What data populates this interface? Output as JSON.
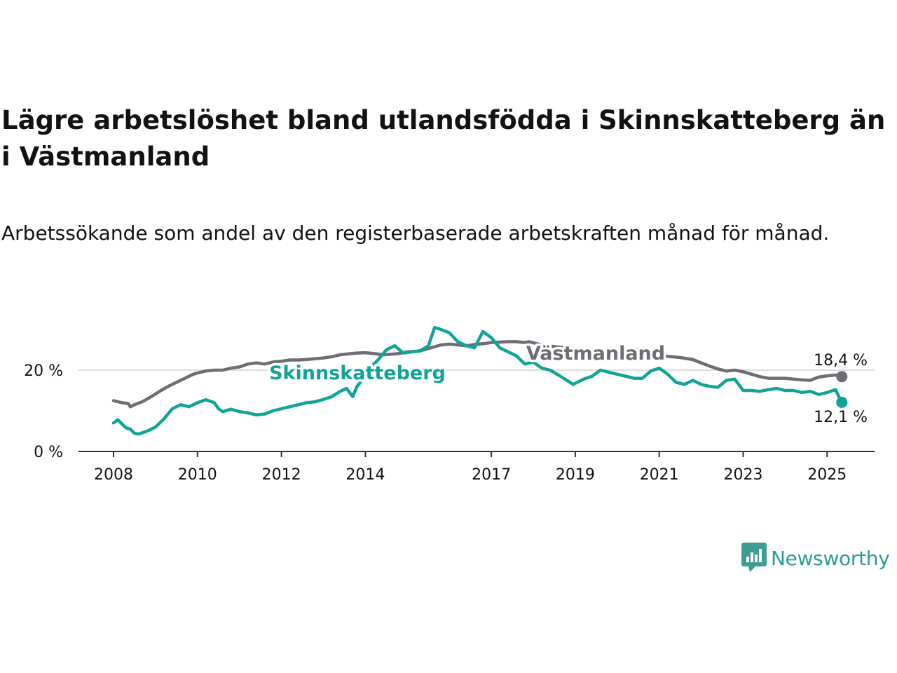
{
  "title": "Lägre arbetslöshet bland utlandsfödda i Skinnskatteberg än i Västmanland",
  "subtitle": "Arbetssökande som andel av den registerbaserade arbetskraften månad för månad.",
  "brand": {
    "name": "Newsworthy",
    "color": "#2a9d8f"
  },
  "chart_data": {
    "type": "line",
    "x_unit": "year",
    "xlim": [
      2007.6,
      2026.2
    ],
    "ylim": [
      0,
      32
    ],
    "y_ticks": [
      0,
      20
    ],
    "y_tick_labels": [
      "0 %",
      "20 %"
    ],
    "x_ticks": [
      2008,
      2010,
      2012,
      2014,
      2017,
      2019,
      2021,
      2023,
      2025
    ],
    "x_tick_labels": [
      "2008",
      "2010",
      "2012",
      "2014",
      "2017",
      "2019",
      "2021",
      "2023",
      "2025"
    ],
    "grid": "horizontal",
    "series": [
      {
        "name": "Västmanland",
        "color": "#6e6c74",
        "end_label": "18,4 %",
        "points": [
          [
            2008.0,
            12.5
          ],
          [
            2008.2,
            12.0
          ],
          [
            2008.35,
            11.8
          ],
          [
            2008.4,
            11.0
          ],
          [
            2008.5,
            11.5
          ],
          [
            2008.7,
            12.3
          ],
          [
            2008.9,
            13.5
          ],
          [
            2009.1,
            14.8
          ],
          [
            2009.3,
            16.0
          ],
          [
            2009.5,
            17.0
          ],
          [
            2009.7,
            18.0
          ],
          [
            2009.9,
            19.0
          ],
          [
            2010.0,
            19.3
          ],
          [
            2010.2,
            19.8
          ],
          [
            2010.4,
            20.0
          ],
          [
            2010.6,
            20.0
          ],
          [
            2010.8,
            20.5
          ],
          [
            2011.0,
            20.8
          ],
          [
            2011.2,
            21.5
          ],
          [
            2011.4,
            21.8
          ],
          [
            2011.6,
            21.5
          ],
          [
            2011.8,
            22.0
          ],
          [
            2012.0,
            22.2
          ],
          [
            2012.2,
            22.5
          ],
          [
            2012.4,
            22.5
          ],
          [
            2012.6,
            22.6
          ],
          [
            2012.8,
            22.8
          ],
          [
            2013.0,
            23.0
          ],
          [
            2013.2,
            23.3
          ],
          [
            2013.4,
            23.8
          ],
          [
            2013.6,
            24.0
          ],
          [
            2013.8,
            24.2
          ],
          [
            2014.0,
            24.3
          ],
          [
            2014.2,
            24.1
          ],
          [
            2014.4,
            23.8
          ],
          [
            2014.6,
            23.9
          ],
          [
            2014.8,
            24.1
          ],
          [
            2015.0,
            24.5
          ],
          [
            2015.2,
            24.6
          ],
          [
            2015.4,
            25.0
          ],
          [
            2015.6,
            25.6
          ],
          [
            2015.8,
            26.2
          ],
          [
            2016.0,
            26.4
          ],
          [
            2016.2,
            26.2
          ],
          [
            2016.4,
            26.0
          ],
          [
            2016.6,
            26.3
          ],
          [
            2016.8,
            26.5
          ],
          [
            2017.0,
            26.8
          ],
          [
            2017.2,
            26.9
          ],
          [
            2017.4,
            27.0
          ],
          [
            2017.6,
            27.0
          ],
          [
            2017.8,
            26.8
          ],
          [
            2017.9,
            27.0
          ],
          [
            2018.2,
            26.2
          ],
          [
            2018.5,
            25.8
          ],
          [
            2018.8,
            25.4
          ],
          [
            2019.1,
            25.2
          ],
          [
            2019.4,
            25.0
          ],
          [
            2019.7,
            24.8
          ],
          [
            2020.0,
            24.9
          ],
          [
            2020.3,
            24.8
          ],
          [
            2020.6,
            25.3
          ],
          [
            2020.9,
            24.0
          ],
          [
            2021.2,
            23.4
          ],
          [
            2021.5,
            23.1
          ],
          [
            2021.8,
            22.6
          ],
          [
            2022.0,
            21.8
          ],
          [
            2022.2,
            21.0
          ],
          [
            2022.4,
            20.3
          ],
          [
            2022.6,
            19.8
          ],
          [
            2022.8,
            20.0
          ],
          [
            2023.0,
            19.6
          ],
          [
            2023.2,
            19.0
          ],
          [
            2023.4,
            18.4
          ],
          [
            2023.6,
            18.0
          ],
          [
            2023.8,
            18.0
          ],
          [
            2024.0,
            18.0
          ],
          [
            2024.2,
            17.8
          ],
          [
            2024.4,
            17.6
          ],
          [
            2024.6,
            17.5
          ],
          [
            2024.8,
            18.3
          ],
          [
            2025.0,
            18.6
          ],
          [
            2025.2,
            18.8
          ],
          [
            2025.35,
            18.4
          ]
        ]
      },
      {
        "name": "Skinnskatteberg",
        "color": "#11a398",
        "end_label": "12,1 %",
        "points": [
          [
            2008.0,
            7.0
          ],
          [
            2008.1,
            7.8
          ],
          [
            2008.2,
            6.8
          ],
          [
            2008.3,
            5.8
          ],
          [
            2008.4,
            5.5
          ],
          [
            2008.5,
            4.5
          ],
          [
            2008.6,
            4.3
          ],
          [
            2008.8,
            5.0
          ],
          [
            2009.0,
            6.0
          ],
          [
            2009.2,
            8.0
          ],
          [
            2009.4,
            10.5
          ],
          [
            2009.6,
            11.5
          ],
          [
            2009.8,
            11.0
          ],
          [
            2010.0,
            12.0
          ],
          [
            2010.2,
            12.7
          ],
          [
            2010.4,
            12.0
          ],
          [
            2010.5,
            10.5
          ],
          [
            2010.6,
            9.8
          ],
          [
            2010.8,
            10.4
          ],
          [
            2011.0,
            9.8
          ],
          [
            2011.2,
            9.5
          ],
          [
            2011.4,
            9.0
          ],
          [
            2011.6,
            9.2
          ],
          [
            2011.8,
            10.0
          ],
          [
            2012.0,
            10.5
          ],
          [
            2012.2,
            11.0
          ],
          [
            2012.4,
            11.5
          ],
          [
            2012.6,
            12.0
          ],
          [
            2012.8,
            12.2
          ],
          [
            2013.0,
            12.8
          ],
          [
            2013.2,
            13.5
          ],
          [
            2013.4,
            14.8
          ],
          [
            2013.55,
            15.5
          ],
          [
            2013.7,
            13.5
          ],
          [
            2013.8,
            16.0
          ],
          [
            2014.0,
            18.5
          ],
          [
            2014.15,
            21.0
          ],
          [
            2014.3,
            22.5
          ],
          [
            2014.5,
            25.0
          ],
          [
            2014.7,
            26.0
          ],
          [
            2014.9,
            24.2
          ],
          [
            2015.1,
            24.5
          ],
          [
            2015.3,
            24.7
          ],
          [
            2015.5,
            26.0
          ],
          [
            2015.65,
            30.5
          ],
          [
            2015.8,
            30.0
          ],
          [
            2016.0,
            29.2
          ],
          [
            2016.2,
            27.0
          ],
          [
            2016.4,
            26.0
          ],
          [
            2016.6,
            25.5
          ],
          [
            2016.8,
            29.5
          ],
          [
            2017.0,
            28.0
          ],
          [
            2017.2,
            25.5
          ],
          [
            2017.4,
            24.5
          ],
          [
            2017.6,
            23.5
          ],
          [
            2017.8,
            21.5
          ],
          [
            2018.0,
            22.0
          ],
          [
            2018.2,
            20.5
          ],
          [
            2018.4,
            20.0
          ],
          [
            2018.6,
            18.8
          ],
          [
            2018.8,
            17.5
          ],
          [
            2018.95,
            16.5
          ],
          [
            2019.2,
            17.8
          ],
          [
            2019.4,
            18.5
          ],
          [
            2019.6,
            20.0
          ],
          [
            2019.8,
            19.5
          ],
          [
            2020.0,
            19.0
          ],
          [
            2020.2,
            18.5
          ],
          [
            2020.4,
            18.0
          ],
          [
            2020.6,
            18.0
          ],
          [
            2020.8,
            19.8
          ],
          [
            2021.0,
            20.5
          ],
          [
            2021.2,
            19.0
          ],
          [
            2021.4,
            17.0
          ],
          [
            2021.6,
            16.5
          ],
          [
            2021.8,
            17.5
          ],
          [
            2022.0,
            16.5
          ],
          [
            2022.2,
            16.0
          ],
          [
            2022.4,
            15.8
          ],
          [
            2022.6,
            17.5
          ],
          [
            2022.8,
            17.8
          ],
          [
            2023.0,
            15.0
          ],
          [
            2023.2,
            15.0
          ],
          [
            2023.4,
            14.8
          ],
          [
            2023.6,
            15.2
          ],
          [
            2023.8,
            15.5
          ],
          [
            2024.0,
            15.0
          ],
          [
            2024.2,
            15.0
          ],
          [
            2024.4,
            14.5
          ],
          [
            2024.6,
            14.8
          ],
          [
            2024.8,
            14.0
          ],
          [
            2025.0,
            14.5
          ],
          [
            2025.2,
            15.2
          ],
          [
            2025.3,
            13.0
          ],
          [
            2025.35,
            12.1
          ]
        ]
      }
    ]
  }
}
